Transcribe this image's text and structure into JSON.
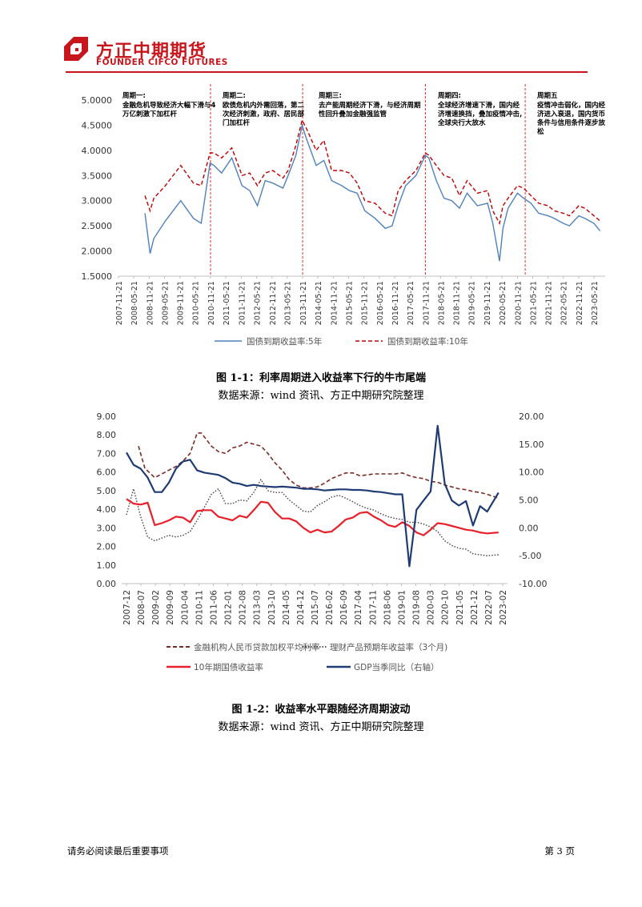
{
  "header": {
    "logo_cn": "方正中期期货",
    "logo_en": "FOUNDER CIFCO FUTURES",
    "brand_color": "#c8161d"
  },
  "figure1": {
    "caption": "图 1-1：利率周期进入收益率下行的牛市尾端",
    "source": "数据来源：wind 资讯、方正中期研究院整理",
    "annotations": [
      {
        "title": "周期一:",
        "text": [
          "金融危机导致经济大幅下滑与4",
          "万亿刺激下加杠杆"
        ]
      },
      {
        "title": "周期二:",
        "text": [
          "欧债危机内外需回落，第二",
          "次经济刺激，政府、居民部",
          "门加杠杆"
        ]
      },
      {
        "title": "周期三:",
        "text": [
          "去产能周期经济下滑，与经济周期",
          "性回升叠加金融强监管"
        ]
      },
      {
        "title": "周期四:",
        "text": [
          "全球经济增速下滑，国内经",
          "济增速换挡，叠加疫情冲击,",
          "全球央行大放水"
        ]
      },
      {
        "title": "周期五",
        "text": [
          "疫情冲击弱化，国内经",
          "济进入衰退，国内货币",
          "条件与信用条件逐步放",
          "松"
        ]
      }
    ]
  },
  "figure2": {
    "caption": "图 1-2：收益率水平跟随经济周期波动",
    "source": "数据来源：wind 资讯、方正中期研究院整理"
  },
  "footer": {
    "notice": "请务必阅读最后重要事项",
    "page": "第 3 页"
  },
  "chart_data": [
    {
      "type": "line",
      "title": "",
      "x": [
        "2007-11-21",
        "2008-05-21",
        "2008-11-21",
        "2009-05-21",
        "2009-11-21",
        "2010-05-21",
        "2010-11-21",
        "2011-05-21",
        "2011-11-21",
        "2012-05-21",
        "2012-11-21",
        "2013-05-21",
        "2013-11-21",
        "2014-05-21",
        "2014-11-21",
        "2015-05-21",
        "2015-11-21",
        "2016-05-21",
        "2016-11-21",
        "2017-05-21",
        "2017-11-21",
        "2018-05-21",
        "2018-11-21",
        "2019-05-21",
        "2019-11-21",
        "2020-05-21",
        "2020-11-21",
        "2021-05-21",
        "2021-11-21",
        "2022-05-21",
        "2022-11-21",
        "2023-05-21"
      ],
      "ylim": [
        1.5,
        5.0
      ],
      "yticks": [
        "5.0000",
        "4.5000",
        "4.0000",
        "3.5000",
        "3.0000",
        "2.5000",
        "2.0000",
        "1.5000"
      ],
      "cycle_dividers": [
        "2010-11-21",
        "2013-11-21",
        "2017-11-21",
        "2021-02-21"
      ],
      "series": [
        {
          "name": "国债到期收益率:5年",
          "color": "#4f81bd",
          "style": "solid",
          "x": [
            "2008-10-01",
            "2008-12-01",
            "2009-01-15",
            "2009-06-01",
            "2009-12-01",
            "2010-05-01",
            "2010-08-01",
            "2010-11-15",
            "2011-01-01",
            "2011-04-01",
            "2011-08-01",
            "2011-12-01",
            "2012-03-01",
            "2012-06-01",
            "2012-09-01",
            "2012-12-01",
            "2013-04-01",
            "2013-06-01",
            "2013-09-01",
            "2013-11-15",
            "2014-01-01",
            "2014-05-01",
            "2014-08-01",
            "2014-11-01",
            "2015-03-01",
            "2015-06-01",
            "2015-09-01",
            "2015-12-01",
            "2016-04-01",
            "2016-08-01",
            "2016-10-21",
            "2017-01-01",
            "2017-04-01",
            "2017-08-01",
            "2017-11-21",
            "2018-01-01",
            "2018-04-01",
            "2018-07-01",
            "2018-10-01",
            "2019-01-01",
            "2019-04-01",
            "2019-08-01",
            "2019-12-01",
            "2020-02-01",
            "2020-04-21",
            "2020-06-01",
            "2020-08-01",
            "2020-11-21",
            "2021-02-01",
            "2021-05-01",
            "2021-08-01",
            "2021-11-21",
            "2022-02-01",
            "2022-05-21",
            "2022-08-01",
            "2022-11-21",
            "2023-02-01",
            "2023-05-21",
            "2023-08-01"
          ],
          "values": [
            2.75,
            1.95,
            2.25,
            2.6,
            3.0,
            2.65,
            2.55,
            3.75,
            3.7,
            3.55,
            3.85,
            3.3,
            3.2,
            2.9,
            3.4,
            3.35,
            3.25,
            3.5,
            3.9,
            4.5,
            4.25,
            3.7,
            3.8,
            3.4,
            3.3,
            3.2,
            3.15,
            2.8,
            2.65,
            2.45,
            2.5,
            2.9,
            3.3,
            3.5,
            3.9,
            3.85,
            3.4,
            3.05,
            3.0,
            2.85,
            3.15,
            2.9,
            2.95,
            2.55,
            1.8,
            2.45,
            2.85,
            3.15,
            3.05,
            2.95,
            2.75,
            2.7,
            2.65,
            2.55,
            2.5,
            2.7,
            2.65,
            2.55,
            2.4
          ]
        },
        {
          "name": "国债到期收益率:10年",
          "color": "#c00000",
          "style": "dashed",
          "x": [
            "2008-10-01",
            "2008-12-01",
            "2009-01-15",
            "2009-06-01",
            "2009-12-01",
            "2010-05-01",
            "2010-08-01",
            "2010-11-15",
            "2011-01-01",
            "2011-04-01",
            "2011-08-01",
            "2011-12-01",
            "2012-03-01",
            "2012-06-01",
            "2012-09-01",
            "2012-12-01",
            "2013-04-01",
            "2013-06-01",
            "2013-09-01",
            "2013-11-15",
            "2014-01-01",
            "2014-05-01",
            "2014-08-01",
            "2014-11-01",
            "2015-03-01",
            "2015-06-01",
            "2015-09-01",
            "2015-12-01",
            "2016-04-01",
            "2016-08-01",
            "2016-10-21",
            "2017-01-01",
            "2017-04-01",
            "2017-08-01",
            "2017-11-21",
            "2018-01-01",
            "2018-04-01",
            "2018-07-01",
            "2018-10-01",
            "2019-01-01",
            "2019-04-01",
            "2019-08-01",
            "2019-12-01",
            "2020-02-01",
            "2020-04-21",
            "2020-06-01",
            "2020-08-01",
            "2020-11-21",
            "2021-02-01",
            "2021-05-01",
            "2021-08-01",
            "2021-11-21",
            "2022-02-01",
            "2022-05-21",
            "2022-08-01",
            "2022-11-21",
            "2023-02-01",
            "2023-05-21",
            "2023-08-01"
          ],
          "values": [
            3.1,
            2.8,
            3.05,
            3.3,
            3.7,
            3.35,
            3.3,
            3.95,
            3.95,
            3.85,
            4.05,
            3.5,
            3.55,
            3.3,
            3.55,
            3.6,
            3.45,
            3.6,
            4.1,
            4.6,
            4.45,
            4.0,
            4.2,
            3.6,
            3.6,
            3.55,
            3.35,
            3.0,
            2.95,
            2.75,
            2.7,
            3.2,
            3.4,
            3.6,
            3.95,
            3.9,
            3.7,
            3.5,
            3.45,
            3.1,
            3.4,
            3.15,
            3.2,
            2.8,
            2.55,
            2.9,
            3.05,
            3.3,
            3.25,
            3.1,
            2.95,
            2.9,
            2.8,
            2.75,
            2.7,
            2.9,
            2.85,
            2.7,
            2.6
          ]
        }
      ]
    },
    {
      "type": "line",
      "title": "",
      "x": [
        "2007-12",
        "2008-07",
        "2009-02",
        "2009-09",
        "2010-04",
        "2010-11",
        "2011-06",
        "2012-01",
        "2012-08",
        "2013-03",
        "2013-10",
        "2014-05",
        "2014-12",
        "2015-07",
        "2016-02",
        "2016-09",
        "2017-04",
        "2017-11",
        "2018-06",
        "2019-01",
        "2019-08",
        "2020-03",
        "2020-10",
        "2021-05",
        "2021-12",
        "2022-07",
        "2023-02"
      ],
      "ylim_left": [
        0,
        9
      ],
      "ylim_right": [
        -10,
        20
      ],
      "yticks_left": [
        "9.00",
        "8.00",
        "7.00",
        "6.00",
        "5.00",
        "4.00",
        "3.00",
        "2.00",
        "1.00",
        "0.00"
      ],
      "yticks_right": [
        "20.00",
        "15.00",
        "10.00",
        "5.00",
        "0.00",
        "-5.00",
        "-10.00"
      ],
      "series": [
        {
          "name": "金融机构人民币贷款加权平均利率",
          "axis": "left",
          "color": "#7b2c27",
          "style": "dashed",
          "x": [
            0.85,
            1.3,
            2.0,
            2.5,
            3.0,
            3.5,
            4.0,
            4.5,
            5.0,
            5.3,
            6.0,
            6.5,
            7.0,
            7.5,
            8.0,
            8.5,
            9.0,
            9.5,
            10.0,
            10.5,
            11.0,
            11.5,
            12.0,
            12.5,
            13.0,
            13.5,
            14.0,
            14.5,
            15.0,
            15.5,
            16.0,
            16.5,
            17.0,
            17.5,
            18.0,
            18.5,
            19.0,
            19.5,
            20.0,
            20.5,
            21.0,
            21.5,
            22.0,
            22.5,
            23.0,
            23.5,
            24.0,
            24.5,
            25.0,
            25.5,
            26.3
          ],
          "values": [
            7.4,
            6.2,
            5.7,
            5.9,
            6.1,
            6.3,
            6.6,
            7.0,
            8.1,
            8.1,
            7.4,
            7.1,
            7.0,
            7.3,
            7.4,
            7.6,
            7.5,
            7.4,
            7.0,
            6.5,
            6.1,
            5.6,
            5.3,
            5.15,
            5.15,
            5.2,
            5.4,
            5.65,
            5.8,
            5.95,
            5.95,
            5.8,
            5.85,
            5.9,
            5.9,
            5.9,
            5.9,
            5.95,
            5.8,
            5.7,
            5.65,
            5.5,
            5.45,
            5.3,
            5.2,
            5.1,
            5.05,
            4.95,
            4.9,
            4.8,
            4.6
          ]
        },
        {
          "name": "理财产品预期年收益率（3个月)",
          "axis": "left",
          "color": "#404040",
          "style": "dotted",
          "x": [
            0,
            0.5,
            1.0,
            1.5,
            2.0,
            2.5,
            3.0,
            3.5,
            4.0,
            4.5,
            5.0,
            5.5,
            6.0,
            6.5,
            7.0,
            7.5,
            8.0,
            8.5,
            9.0,
            9.5,
            10.0,
            10.5,
            11.0,
            11.5,
            12.0,
            12.5,
            13.0,
            13.5,
            14.0,
            14.5,
            15.0,
            15.5,
            16.0,
            16.5,
            17.0,
            17.5,
            18.0,
            18.5,
            19.0,
            19.5,
            20.0,
            20.5,
            21.0,
            21.5,
            22.0,
            22.5,
            23.0,
            23.5,
            24.0,
            24.5,
            25.0,
            25.5,
            26.3
          ],
          "values": [
            3.7,
            5.1,
            3.6,
            2.5,
            2.3,
            2.45,
            2.6,
            2.5,
            2.6,
            2.8,
            3.4,
            4.1,
            4.8,
            5.1,
            4.3,
            4.3,
            4.5,
            4.45,
            4.9,
            5.6,
            5.0,
            4.9,
            4.9,
            4.5,
            4.2,
            3.9,
            3.85,
            4.2,
            4.4,
            4.65,
            4.75,
            4.6,
            4.4,
            4.2,
            4.05,
            3.95,
            3.75,
            3.6,
            3.5,
            3.45,
            3.3,
            3.3,
            3.2,
            3.05,
            2.8,
            2.3,
            2.05,
            1.9,
            1.85,
            1.6,
            1.55,
            1.5,
            1.55
          ]
        },
        {
          "name": "10年期国债收益率",
          "axis": "left",
          "color": "#e8202a",
          "style": "solid",
          "x": [
            0,
            0.5,
            1.0,
            1.5,
            2.0,
            2.5,
            3.0,
            3.5,
            4.0,
            4.5,
            5.0,
            5.5,
            6.0,
            6.5,
            7.0,
            7.5,
            8.0,
            8.5,
            9.0,
            9.5,
            10.0,
            10.5,
            11.0,
            11.5,
            12.0,
            12.5,
            13.0,
            13.5,
            14.0,
            14.5,
            15.0,
            15.5,
            16.0,
            16.5,
            17.0,
            17.5,
            18.0,
            18.5,
            19.0,
            19.5,
            20.0,
            20.5,
            21.0,
            21.5,
            22.0,
            22.5,
            23.0,
            23.5,
            24.0,
            24.5,
            25.0,
            25.5,
            26.3
          ],
          "values": [
            4.55,
            4.3,
            4.25,
            4.35,
            3.15,
            3.25,
            3.4,
            3.6,
            3.55,
            3.3,
            3.9,
            3.95,
            3.95,
            3.6,
            3.5,
            3.4,
            3.65,
            3.55,
            3.95,
            4.4,
            4.35,
            3.85,
            3.5,
            3.5,
            3.35,
            3.0,
            2.75,
            2.9,
            2.75,
            2.8,
            3.1,
            3.45,
            3.55,
            3.8,
            3.85,
            3.6,
            3.4,
            3.15,
            3.05,
            3.3,
            3.1,
            2.75,
            2.6,
            2.9,
            3.25,
            3.2,
            3.1,
            3.0,
            2.9,
            2.85,
            2.75,
            2.7,
            2.75
          ]
        },
        {
          "name": "GDP当季同比（右轴）",
          "axis": "right",
          "color": "#1f3b73",
          "style": "solid",
          "x": [
            0,
            0.5,
            1.0,
            1.5,
            2.0,
            2.5,
            3.0,
            3.5,
            4.0,
            4.5,
            5.0,
            5.5,
            6.0,
            6.5,
            7.0,
            7.5,
            8.0,
            8.5,
            9.0,
            9.5,
            10.0,
            10.5,
            11.0,
            11.5,
            12.0,
            12.5,
            13.0,
            13.5,
            14.0,
            14.5,
            15.0,
            15.5,
            16.0,
            16.5,
            17.0,
            17.5,
            18.0,
            18.5,
            19.0,
            19.5,
            20.0,
            20.5,
            21.0,
            21.5,
            22.0,
            22.5,
            23.0,
            23.5,
            24.0,
            24.5,
            25.0,
            25.5,
            26.3
          ],
          "values": [
            13.5,
            11.3,
            10.6,
            9.0,
            6.4,
            6.4,
            8.1,
            10.6,
            11.9,
            12.2,
            10.3,
            9.9,
            9.7,
            9.5,
            8.9,
            8.1,
            7.9,
            7.5,
            7.7,
            7.5,
            7.4,
            7.3,
            7.4,
            7.3,
            7.2,
            7.0,
            7.0,
            6.9,
            6.7,
            6.8,
            6.9,
            6.9,
            6.8,
            6.8,
            6.7,
            6.5,
            6.4,
            6.2,
            6.0,
            6.0,
            -6.9,
            3.2,
            4.9,
            6.5,
            18.3,
            7.9,
            4.9,
            4.0,
            4.8,
            0.4,
            3.9,
            2.9,
            6.3
          ]
        }
      ]
    }
  ]
}
